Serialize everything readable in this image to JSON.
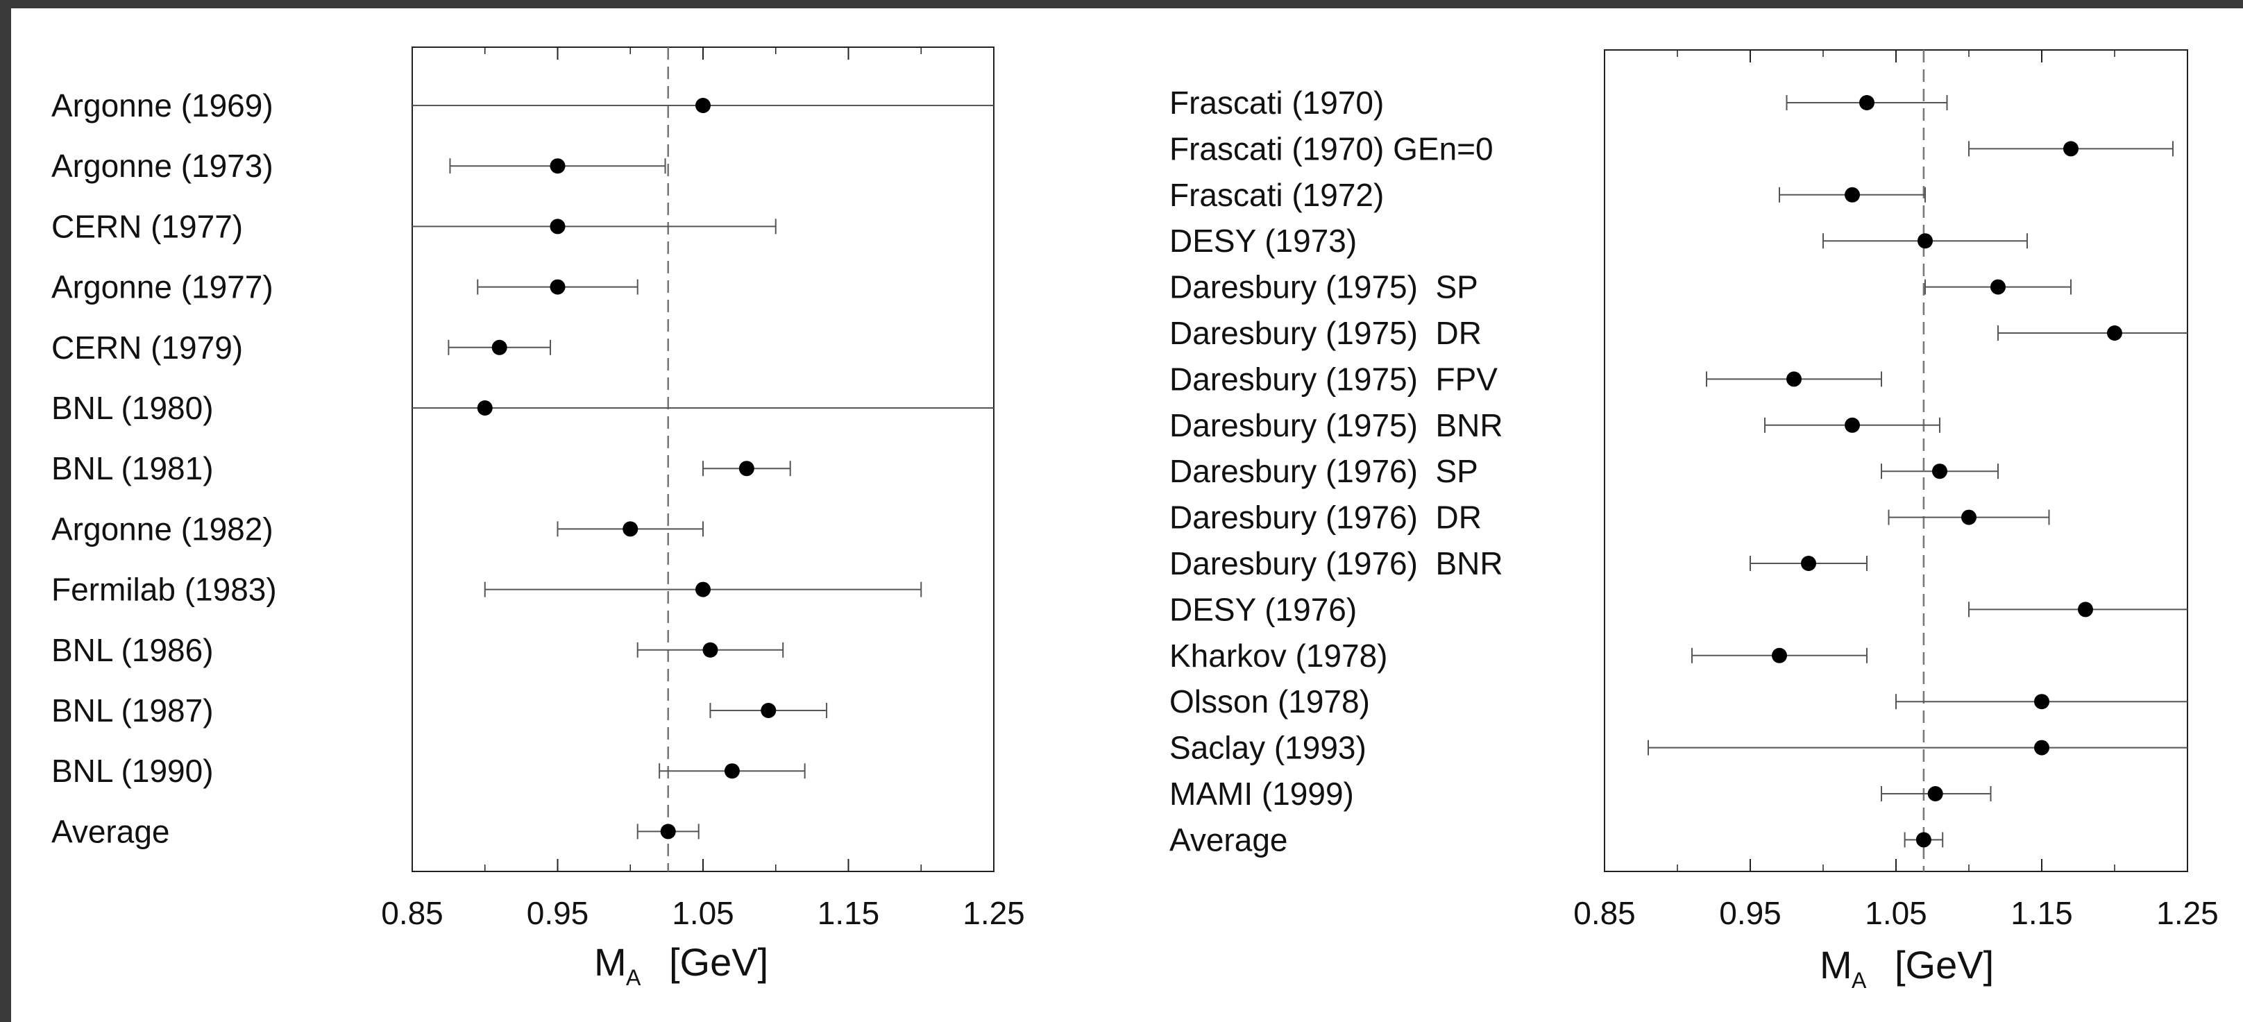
{
  "chart_data": [
    {
      "type": "scatter",
      "subtype": "forest-plot-with-error-bars",
      "xlabel_main": "M",
      "xlabel_sub": "A",
      "xlabel_unit": "[GeV]",
      "xlim": [
        0.85,
        1.25
      ],
      "xticks": [
        "0.85",
        "0.95",
        "1.05",
        "1.15",
        "1.25"
      ],
      "reference_line": 1.026,
      "points": [
        {
          "label": "Argonne (1969)",
          "value": 1.05,
          "low": 0.85,
          "high": 1.25
        },
        {
          "label": "Argonne (1973)",
          "value": 0.95,
          "low": 0.876,
          "high": 1.024
        },
        {
          "label": "CERN (1977)",
          "value": 0.95,
          "low": 0.85,
          "high": 1.1
        },
        {
          "label": "Argonne (1977)",
          "value": 0.95,
          "low": 0.895,
          "high": 1.005
        },
        {
          "label": "CERN (1979)",
          "value": 0.91,
          "low": 0.875,
          "high": 0.945
        },
        {
          "label": "BNL (1980)",
          "value": 0.9,
          "low": 0.85,
          "high": 1.25
        },
        {
          "label": "BNL (1981)",
          "value": 1.08,
          "low": 1.05,
          "high": 1.11
        },
        {
          "label": "Argonne (1982)",
          "value": 1.0,
          "low": 0.95,
          "high": 1.05
        },
        {
          "label": "Fermilab (1983)",
          "value": 1.05,
          "low": 0.9,
          "high": 1.2
        },
        {
          "label": "BNL (1986)",
          "value": 1.055,
          "low": 1.005,
          "high": 1.105
        },
        {
          "label": "BNL (1987)",
          "value": 1.095,
          "low": 1.055,
          "high": 1.135
        },
        {
          "label": "BNL (1990)",
          "value": 1.07,
          "low": 1.02,
          "high": 1.12
        },
        {
          "label": "Average",
          "value": 1.026,
          "low": 1.005,
          "high": 1.047
        }
      ]
    },
    {
      "type": "scatter",
      "subtype": "forest-plot-with-error-bars",
      "xlabel_main": "M",
      "xlabel_sub": "A",
      "xlabel_unit": "[GeV]",
      "xlim": [
        0.85,
        1.25
      ],
      "xticks": [
        "0.85",
        "0.95",
        "1.05",
        "1.15",
        "1.25"
      ],
      "reference_line": 1.069,
      "points": [
        {
          "label": "Frascati (1970)",
          "value": 1.03,
          "low": 0.975,
          "high": 1.085
        },
        {
          "label": "Frascati (1970) GEn=0",
          "value": 1.17,
          "low": 1.1,
          "high": 1.24
        },
        {
          "label": "Frascati (1972)",
          "value": 1.02,
          "low": 0.97,
          "high": 1.07
        },
        {
          "label": "DESY (1973)",
          "value": 1.07,
          "low": 1.0,
          "high": 1.14
        },
        {
          "label": "Daresbury (1975)  SP",
          "value": 1.12,
          "low": 1.07,
          "high": 1.17
        },
        {
          "label": "Daresbury (1975)  DR",
          "value": 1.2,
          "low": 1.12,
          "high": 1.25
        },
        {
          "label": "Daresbury (1975)  FPV",
          "value": 0.98,
          "low": 0.92,
          "high": 1.04
        },
        {
          "label": "Daresbury (1975)  BNR",
          "value": 1.02,
          "low": 0.96,
          "high": 1.08
        },
        {
          "label": "Daresbury (1976)  SP",
          "value": 1.08,
          "low": 1.04,
          "high": 1.12
        },
        {
          "label": "Daresbury (1976)  DR",
          "value": 1.1,
          "low": 1.045,
          "high": 1.155
        },
        {
          "label": "Daresbury (1976)  BNR",
          "value": 0.99,
          "low": 0.95,
          "high": 1.03
        },
        {
          "label": "DESY (1976)",
          "value": 1.18,
          "low": 1.1,
          "high": 1.25
        },
        {
          "label": "Kharkov (1978)",
          "value": 0.97,
          "low": 0.91,
          "high": 1.03
        },
        {
          "label": "Olsson (1978)",
          "value": 1.15,
          "low": 1.05,
          "high": 1.25
        },
        {
          "label": "Saclay (1993)",
          "value": 1.15,
          "low": 0.88,
          "high": 1.25
        },
        {
          "label": "MAMI (1999)",
          "value": 1.077,
          "low": 1.04,
          "high": 1.115
        },
        {
          "label": "Average",
          "value": 1.069,
          "low": 1.056,
          "high": 1.082
        }
      ]
    }
  ]
}
